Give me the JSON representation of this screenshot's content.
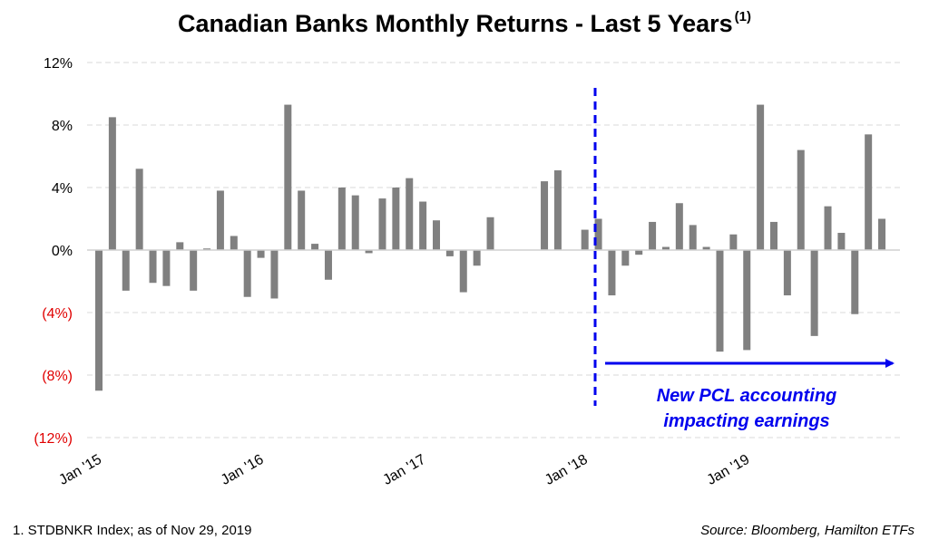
{
  "title": "Canadian Banks Monthly Returns - Last 5 Years",
  "title_superscript": "(1)",
  "footnote": "1. STDBNKR Index; as of Nov 29, 2019",
  "source": "Source: Bloomberg, Hamilton ETFs",
  "colors": {
    "bar": "#808080",
    "negative_label": "#e00000",
    "annotation": "#0000ee",
    "grid": "#d9d9d9"
  },
  "chart_data": {
    "type": "bar",
    "title": "Canadian Banks Monthly Returns - Last 5 Years",
    "xlabel": "",
    "ylabel": "",
    "ylim": [
      -12,
      12
    ],
    "y_ticks": [
      12,
      8,
      4,
      0,
      -4,
      -8,
      -12
    ],
    "y_tick_labels": [
      "12%",
      "8%",
      "4%",
      "0%",
      "(4%)",
      "(8%)",
      "(12%)"
    ],
    "x_tick_labels": [
      "Jan '15",
      "Jan '16",
      "Jan '17",
      "Jan '18",
      "Jan '19"
    ],
    "x_tick_indices": [
      0,
      12,
      24,
      36,
      48
    ],
    "grid": true,
    "categories": [
      "Jan '15",
      "Feb '15",
      "Mar '15",
      "Apr '15",
      "May '15",
      "Jun '15",
      "Jul '15",
      "Aug '15",
      "Sep '15",
      "Oct '15",
      "Nov '15",
      "Dec '15",
      "Jan '16",
      "Feb '16",
      "Mar '16",
      "Apr '16",
      "May '16",
      "Jun '16",
      "Jul '16",
      "Aug '16",
      "Sep '16",
      "Oct '16",
      "Nov '16",
      "Dec '16",
      "Jan '17",
      "Feb '17",
      "Mar '17",
      "Apr '17",
      "May '17",
      "Jun '17",
      "Jul '17",
      "Aug '17",
      "Sep '17",
      "Oct '17",
      "Nov '17",
      "Dec '17",
      "Jan '18",
      "Feb '18",
      "Mar '18",
      "Apr '18",
      "May '18",
      "Jun '18",
      "Jul '18",
      "Aug '18",
      "Sep '18",
      "Oct '18",
      "Nov '18",
      "Dec '18",
      "Jan '19",
      "Feb '19",
      "Mar '19",
      "Apr '19",
      "May '19",
      "Jun '19",
      "Jul '19",
      "Aug '19",
      "Sep '19",
      "Oct '19",
      "Nov '19"
    ],
    "values": [
      -9.0,
      8.5,
      -2.6,
      5.2,
      -2.1,
      -2.3,
      0.5,
      -2.6,
      0.1,
      3.8,
      0.9,
      -3.0,
      -0.5,
      -3.1,
      9.3,
      3.8,
      0.4,
      -1.9,
      4.0,
      3.5,
      -0.2,
      3.3,
      4.0,
      4.6,
      3.1,
      1.9,
      -0.4,
      -2.7,
      -1.0,
      2.1,
      0.0,
      0.0,
      0.0,
      4.4,
      5.1,
      0.0,
      1.3,
      2.0,
      -2.9,
      -1.0,
      -0.3,
      1.8,
      0.2,
      3.0,
      1.6,
      0.2,
      -6.5,
      1.0,
      -6.4,
      9.3,
      1.8,
      -2.9,
      6.4,
      -5.5,
      2.8,
      1.1,
      -4.1,
      7.4,
      2.0
    ],
    "annotation": {
      "lines": [
        "New PCL accounting",
        "impacting earnings"
      ],
      "divider_after_index": 37
    }
  }
}
